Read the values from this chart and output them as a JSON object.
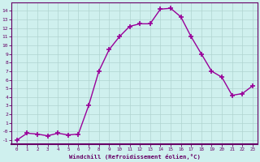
{
  "x": [
    0,
    1,
    2,
    3,
    4,
    5,
    6,
    7,
    8,
    9,
    10,
    11,
    12,
    13,
    14,
    15,
    16,
    17,
    18,
    19,
    20,
    21,
    22,
    23
  ],
  "y": [
    -1,
    -0.2,
    -0.3,
    -0.5,
    -0.2,
    -0.4,
    -0.3,
    3.0,
    7.0,
    9.5,
    11.0,
    12.2,
    12.5,
    12.5,
    14.2,
    14.3,
    13.3,
    11.0,
    9.0,
    7.0,
    6.3,
    4.2,
    4.4,
    5.3
  ],
  "line_color": "#990099",
  "marker": "+",
  "marker_size": 4,
  "marker_lw": 1.2,
  "line_width": 1.0,
  "bg_color": "#cff0ee",
  "grid_color": "#b0d4d0",
  "axis_color": "#660066",
  "xlabel": "Windchill (Refroidissement éolien,°C)",
  "xlabel_color": "#660066",
  "tick_color": "#660066",
  "ylim": [
    -1.5,
    15.0
  ],
  "xlim": [
    -0.5,
    23.5
  ],
  "ytick_labels": [
    "-1",
    "-0",
    "1",
    "2",
    "3",
    "4",
    "5",
    "6",
    "7",
    "8",
    "9",
    "10",
    "11",
    "12",
    "13",
    "14"
  ],
  "ytick_vals": [
    -1,
    0,
    1,
    2,
    3,
    4,
    5,
    6,
    7,
    8,
    9,
    10,
    11,
    12,
    13,
    14
  ],
  "xticks": [
    0,
    1,
    2,
    3,
    4,
    5,
    6,
    7,
    8,
    9,
    10,
    11,
    12,
    13,
    14,
    15,
    16,
    17,
    18,
    19,
    20,
    21,
    22,
    23
  ]
}
